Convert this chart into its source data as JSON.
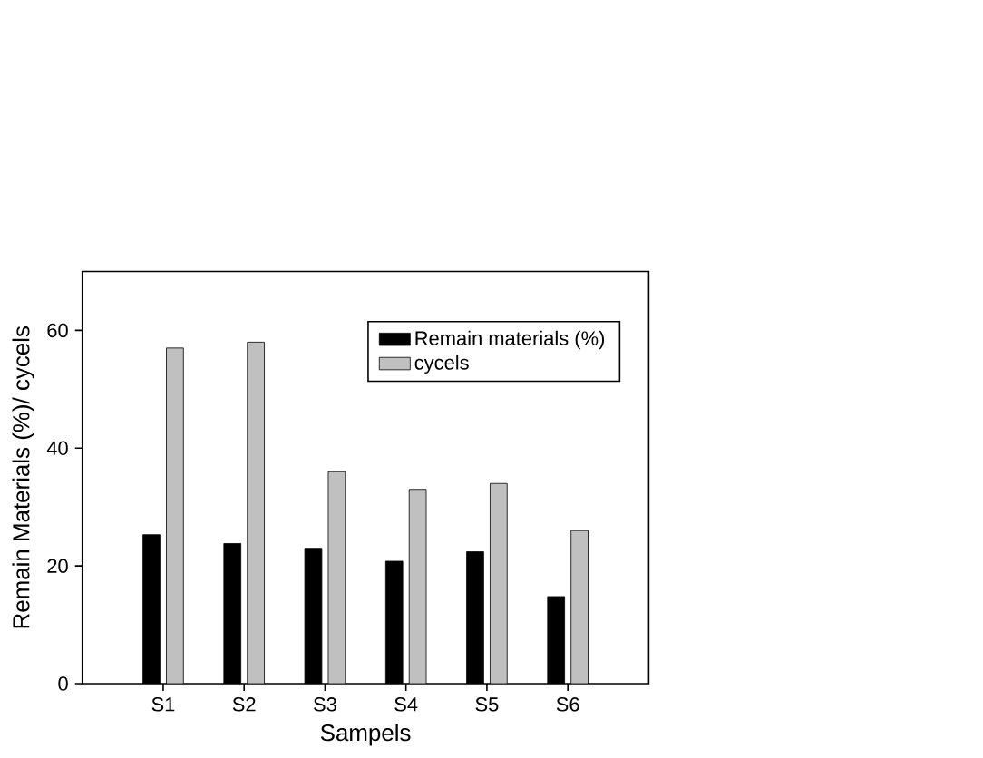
{
  "chart_data": {
    "type": "bar",
    "xlabel": "Sampels",
    "ylabel": "Remain Materials (%)/ cycels",
    "categories": [
      "S1",
      "S2",
      "S3",
      "S4",
      "S5",
      "S6"
    ],
    "series": [
      {
        "name": "Remain materials (%)",
        "color": "#000000",
        "values": [
          25.3,
          23.8,
          23.0,
          20.8,
          22.4,
          14.8
        ]
      },
      {
        "name": "cycels",
        "color": "#c0c0c0",
        "values": [
          57,
          58,
          36,
          33,
          34,
          26
        ]
      }
    ],
    "ylim": [
      0,
      70
    ],
    "yticks": [
      0,
      20,
      40,
      60
    ],
    "legend": "top right",
    "grid": false
  }
}
